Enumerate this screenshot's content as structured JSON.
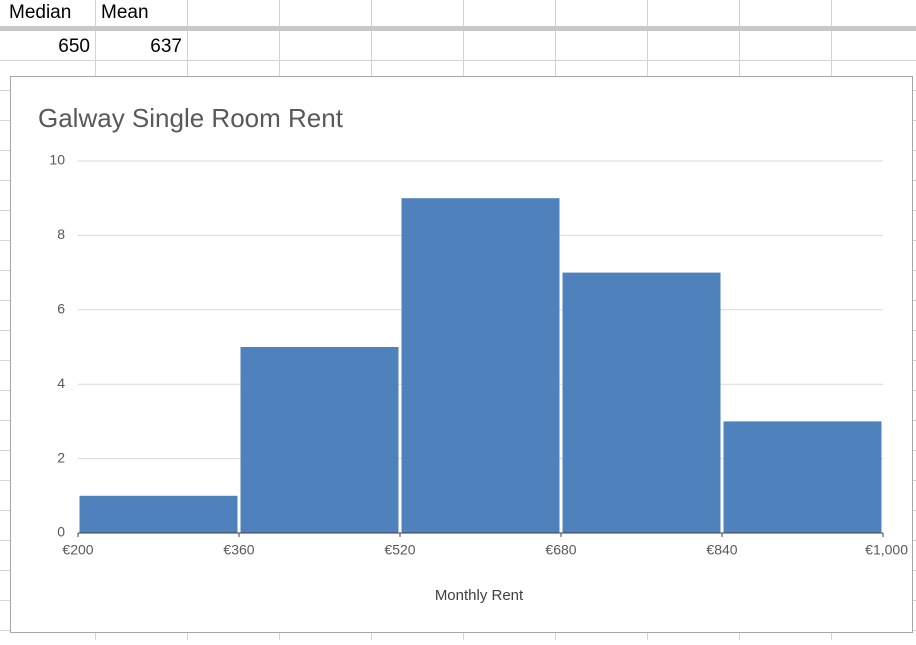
{
  "sheet": {
    "header": [
      "Median",
      "Mean"
    ],
    "row": [
      650,
      637
    ]
  },
  "chart_data": {
    "type": "histogram",
    "title": "Galway Single Room Rent",
    "x_label": "Monthly Rent",
    "bins": [
      200,
      360,
      520,
      680,
      840,
      1000
    ],
    "values": [
      1,
      5,
      9,
      7,
      3
    ],
    "color": "#4f81bd",
    "xlim": [
      200,
      1000
    ],
    "xticks": [
      {
        "value": 200,
        "label": "€200"
      },
      {
        "value": 360,
        "label": "€360"
      },
      {
        "value": 520,
        "label": "€520"
      },
      {
        "value": 680,
        "label": "€680"
      },
      {
        "value": 840,
        "label": "€840"
      },
      {
        "value": 1000,
        "label": "€1,000"
      }
    ],
    "ylim": [
      0,
      10
    ],
    "yticks": [
      0,
      2,
      4,
      6,
      8,
      10
    ],
    "grid": true
  }
}
